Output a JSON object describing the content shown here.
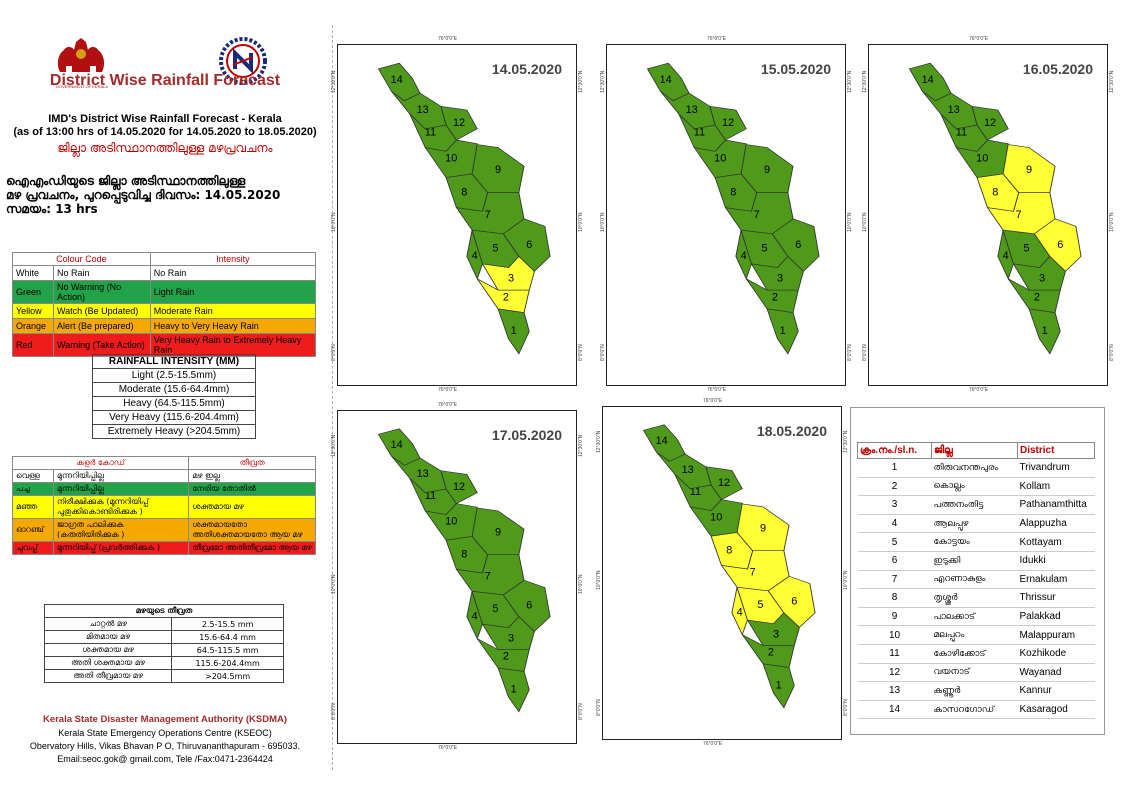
{
  "header": {
    "logo_text": "GOVERNMENT OF KERALA",
    "title": "District Wise Rainfall Forecast",
    "subtitle1": "IMD's District Wise Rainfall Forecast - Kerala",
    "subtitle2": "(as of 13:00 hrs of 14.05.2020  for 14.05.2020  to 18.05.2020)",
    "mal_title": "ജില്ലാ അടിസ്ഥാനത്തിലുള്ള മഴപ്രവചനം",
    "mal_line1": "ഐഎംഡിയുടെ ജില്ലാ  അടിസ്ഥാനത്തിലുള്ള",
    "mal_line2": "മഴ പ്രവചനം, പുറപ്പെടുവിച്ച  ദിവസം: 14.05.2020",
    "mal_line3": "സമയം: 13 hrs"
  },
  "legend": {
    "col1": "Colour Code",
    "col2": "Intensity",
    "rows": [
      {
        "color": "White",
        "meaning": "No Rain",
        "intensity": "No Rain",
        "bg": "#ffffff",
        "fg": "#000000"
      },
      {
        "color": "Green",
        "meaning": "No Warning (No Action)",
        "intensity": "Light Rain",
        "bg": "#22a34a",
        "fg": "#000000"
      },
      {
        "color": "Yellow",
        "meaning": "Watch (Be Updated)",
        "intensity": "Moderate Rain",
        "bg": "#ffff00",
        "fg": "#000000"
      },
      {
        "color": "Orange",
        "meaning": "Alert (Be prepared)",
        "intensity": "Heavy to Very Heavy Rain",
        "bg": "#f5a800",
        "fg": "#000000"
      },
      {
        "color": "Red",
        "meaning": "Warning (Take Action)",
        "intensity": "Very Heavy Rain to Extremely Heavy Rain",
        "bg": "#ee1c1c",
        "fg": "#000000"
      }
    ]
  },
  "intensity_table": {
    "title": "RAINFALL INTENSITY (MM)",
    "rows": [
      "Light (2.5-15.5mm)",
      "Moderate (15.6-64.4mm)",
      "Heavy (64.5-115.5mm)",
      "Very Heavy (115.6-204.4mm)",
      "Extremely Heavy (>204.5mm)"
    ]
  },
  "legend_ml": {
    "col1": "കളർ കോഡ്",
    "col2": "തീവ്രത",
    "rows": [
      {
        "color": "വെള്ള",
        "meaning": "മുന്നറിയിപ്പില്ല",
        "intensity": "മഴ ഇല്ല",
        "bg": "#ffffff"
      },
      {
        "color": "പച്ച",
        "meaning": "മുന്നറിയിപ്പില്ല",
        "intensity": "നേരിയ തോതിൽ",
        "bg": "#22a34a"
      },
      {
        "color": "മഞ്ഞ",
        "meaning": "നിരീക്ഷിക്കുക (മുന്നറിയിപ്പ് പുതുക്കികൊണ്ടിരിക്കുക )",
        "intensity": "ശക്തമായ മഴ",
        "bg": "#ffff00"
      },
      {
        "color": "ഓറഞ്ച്",
        "meaning": "ജാഗ്രത പാലിക്കുക (കരുതിയിരിക്കുക )",
        "intensity": "ശക്തമായതോ അതിശക്തമായതോ ആയ മഴ",
        "bg": "#f5a800"
      },
      {
        "color": "ചുവപ്പ്",
        "meaning": "മുന്നറിയിപ്പ് (പ്രവർത്തിക്കുക )",
        "intensity": "തീവ്രമോ അതിതീവ്രമോ ആയ മഴ",
        "bg": "#ee1c1c"
      }
    ]
  },
  "intensity_ml": {
    "title": "മഴയുടെ തീവ്രത",
    "rows": [
      {
        "label": "ചാറ്റൽ മഴ",
        "value": "2.5-15.5 mm"
      },
      {
        "label": "മിതമായ മഴ",
        "value": "15.6-64.4 mm"
      },
      {
        "label": "ശക്തമായ മഴ",
        "value": "64.5-115.5 mm"
      },
      {
        "label": "അതി ശക്തമായ മഴ",
        "value": "115.6-204.4mm"
      },
      {
        "label": "അതി തീവ്രമായ മഴ",
        "value": ">204.5mm"
      }
    ]
  },
  "footer": {
    "org": "Kerala State Disaster Management Authority (KSDMA)",
    "line1": "Kerala State Emergency Operations Centre (KSEOC)",
    "line2": "Obervatory Hills, Vikas Bhavan P O, Thiruvananthapuram - 695033.",
    "line3": "Email:seoc.gok@ gmail.com, Tele /Fax:0471-2364424"
  },
  "maps": [
    {
      "date": "14.05.2020",
      "yellow": [
        2,
        3
      ]
    },
    {
      "date": "15.05.2020",
      "yellow": []
    },
    {
      "date": "16.05.2020",
      "yellow": [
        6,
        7,
        8,
        9
      ]
    },
    {
      "date": "17.05.2020",
      "yellow": []
    },
    {
      "date": "18.05.2020",
      "yellow": [
        4,
        5,
        6,
        7,
        8,
        9
      ]
    }
  ],
  "map_coords": {
    "lon": "76°0'0\"E",
    "lat_top": "12°30'0\"N",
    "lat_mid": "10°0'0\"N",
    "lat_bot": "8°0'0\"N"
  },
  "district_table": {
    "col1": "ക്രം.നം./sl.n.",
    "col2": "ജില്ല",
    "col3": "District",
    "rows": [
      {
        "n": "1",
        "ml": "തിരുവനന്തപുരം",
        "en": "Trivandrum"
      },
      {
        "n": "2",
        "ml": "കൊല്ലം",
        "en": "Kollam"
      },
      {
        "n": "3",
        "ml": "പത്തനംതിട്ട",
        "en": "Pathanamthitta"
      },
      {
        "n": "4",
        "ml": "ആലപ്പുഴ",
        "en": "Alappuzha"
      },
      {
        "n": "5",
        "ml": "കോട്ടയം",
        "en": "Kottayam"
      },
      {
        "n": "6",
        "ml": "ഇടുക്കി",
        "en": "Idukki"
      },
      {
        "n": "7",
        "ml": "എറണാകുളം",
        "en": "Ernakulam"
      },
      {
        "n": "8",
        "ml": "തൃശ്ശൂർ",
        "en": "Thrissur"
      },
      {
        "n": "9",
        "ml": "പാലക്കാട്",
        "en": "Palakkad"
      },
      {
        "n": "10",
        "ml": "മലപ്പുറം",
        "en": "Malappuram"
      },
      {
        "n": "11",
        "ml": "കോഴിക്കോട്",
        "en": "Kozhikode"
      },
      {
        "n": "12",
        "ml": "വയനാട്",
        "en": "Wayanad"
      },
      {
        "n": "13",
        "ml": "കണ്ണൂർ",
        "en": "Kannur"
      },
      {
        "n": "14",
        "ml": "കാസറഗോഡ്",
        "en": "Kasaragod"
      }
    ]
  },
  "colors": {
    "green": "#4f9a1b",
    "yellow": "#ffff33",
    "border": "#333333",
    "title_red": "#a52a2a"
  }
}
